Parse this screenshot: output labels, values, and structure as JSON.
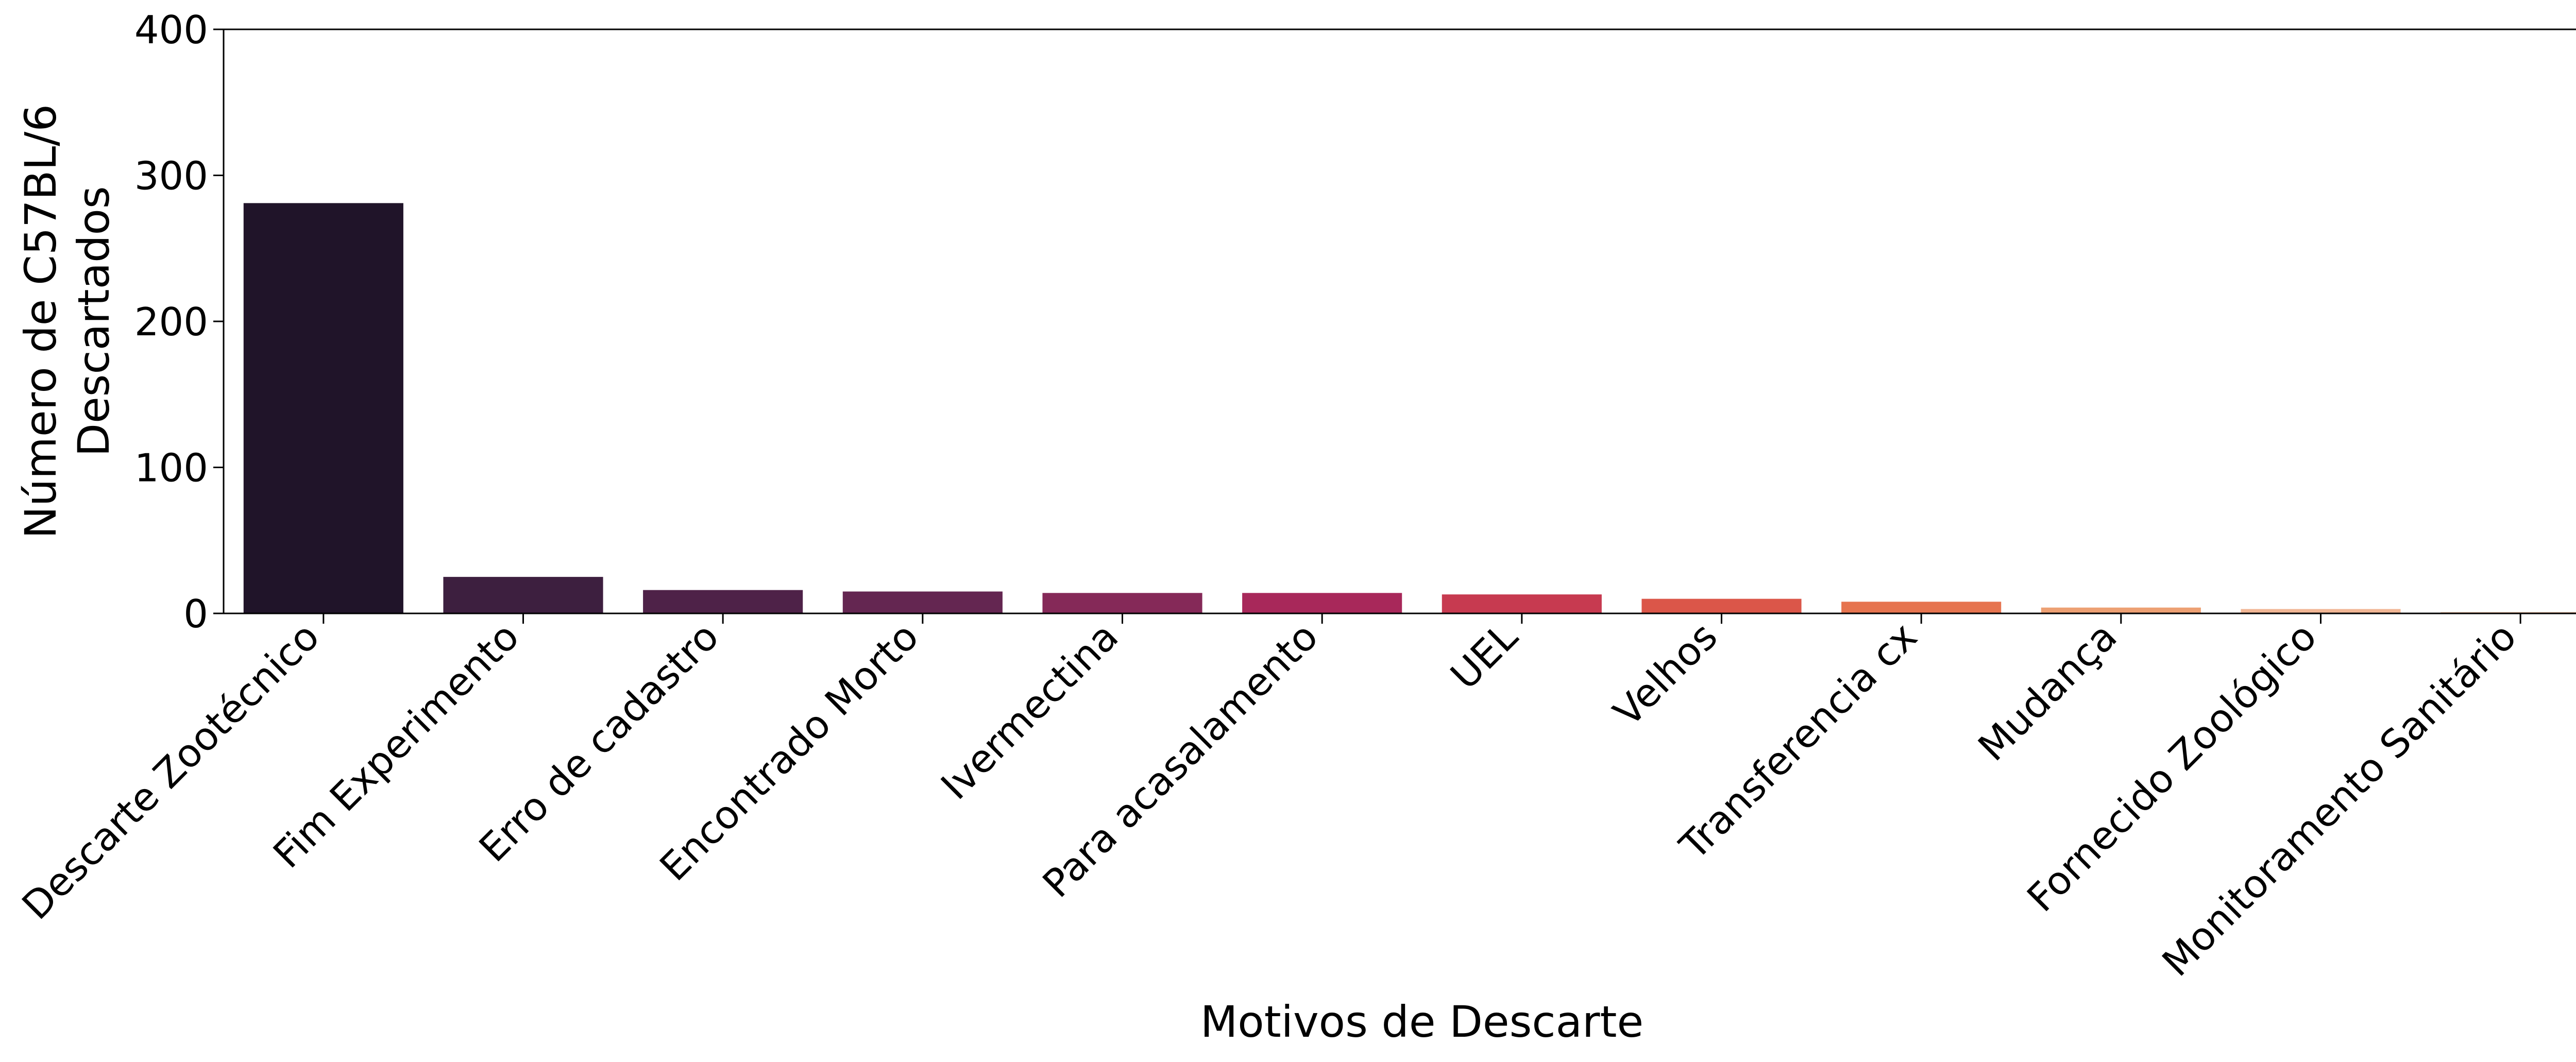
{
  "chart_data": {
    "type": "bar",
    "xlabel": "Motivos de Descarte",
    "ylabel_lines": [
      "Número de C57BL/6",
      "Descartados"
    ],
    "ylim": [
      0,
      400
    ],
    "yticks": [
      "0",
      "100",
      "200",
      "300",
      "400"
    ],
    "grid": false,
    "categories": [
      "Descarte Zootécnico",
      "Fim Experimento",
      "Erro de cadastro",
      "Encontrado Morto",
      "Ivermectina",
      "Para acasalamento",
      "UEL",
      "Velhos",
      "Transferencia cx",
      "Mudança",
      "Fornecido Zoológico",
      "Monitoramento Sanitário"
    ],
    "values": [
      281,
      25,
      16,
      15,
      14,
      14,
      13,
      10,
      8,
      4,
      3,
      1
    ],
    "colors": [
      "#201429",
      "#3d1f3f",
      "#4e2248",
      "#642651",
      "#852958",
      "#a8285a",
      "#c73a50",
      "#db5649",
      "#e6744f",
      "#eda073",
      "#f1b695",
      "#f3ccb3"
    ]
  }
}
